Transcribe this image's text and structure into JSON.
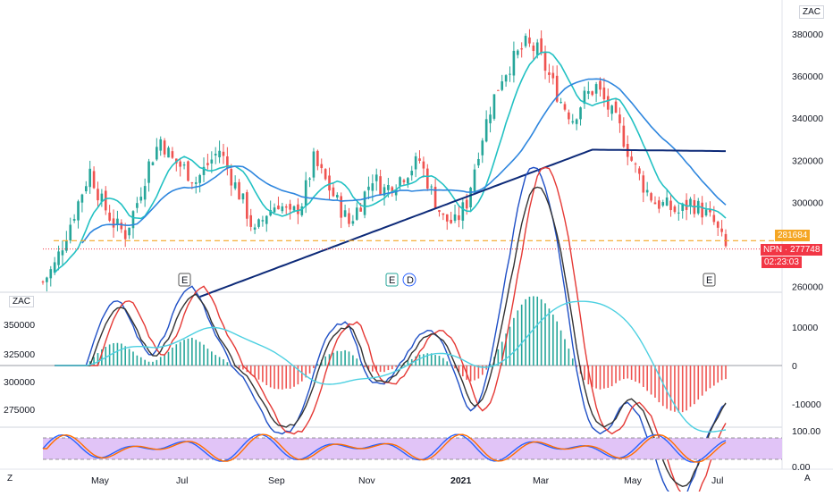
{
  "chart_data": [
    {
      "type": "candlestick",
      "symbol": "NPN",
      "currency_label": "ZAC",
      "price_ticks": [
        380000,
        360000,
        340000,
        320000,
        300000,
        260000
      ],
      "ylim": [
        258000,
        392000
      ],
      "x_labels": [
        "May",
        "Jul",
        "Sep",
        "Nov",
        "2021",
        "Mar",
        "May",
        "Jul"
      ],
      "price_lines": {
        "orange_level": "281684",
        "last_price": "277748",
        "countdown": "02:23:03"
      },
      "event_markers": [
        "E",
        "E",
        "D",
        "E"
      ],
      "close_trend": [
        [
          0,
          262000
        ],
        [
          3,
          270000
        ],
        [
          6,
          285000
        ],
        [
          9,
          300000
        ],
        [
          12,
          315000
        ],
        [
          15,
          300000
        ],
        [
          18,
          290000
        ],
        [
          21,
          285000
        ],
        [
          24,
          300000
        ],
        [
          27,
          318000
        ],
        [
          30,
          330000
        ],
        [
          33,
          320000
        ],
        [
          36,
          316000
        ],
        [
          39,
          310000
        ],
        [
          42,
          318000
        ],
        [
          45,
          325000
        ],
        [
          48,
          312000
        ],
        [
          51,
          300000
        ],
        [
          54,
          285000
        ],
        [
          57,
          295000
        ],
        [
          60,
          300000
        ],
        [
          63,
          293000
        ],
        [
          66,
          300000
        ],
        [
          69,
          320000
        ],
        [
          72,
          310000
        ],
        [
          75,
          300000
        ],
        [
          78,
          290000
        ],
        [
          81,
          300000
        ],
        [
          84,
          312000
        ],
        [
          87,
          306000
        ],
        [
          90,
          310000
        ],
        [
          93,
          315000
        ],
        [
          96,
          320000
        ],
        [
          99,
          305000
        ],
        [
          102,
          292000
        ],
        [
          105,
          290000
        ],
        [
          108,
          300000
        ],
        [
          111,
          325000
        ],
        [
          114,
          345000
        ],
        [
          117,
          360000
        ],
        [
          120,
          368000
        ],
        [
          123,
          375000
        ],
        [
          126,
          372000
        ],
        [
          129,
          360000
        ],
        [
          132,
          348000
        ],
        [
          135,
          340000
        ],
        [
          138,
          350000
        ],
        [
          141,
          355000
        ],
        [
          144,
          345000
        ],
        [
          147,
          335000
        ],
        [
          150,
          320000
        ],
        [
          153,
          308000
        ],
        [
          156,
          300000
        ],
        [
          159,
          298000
        ],
        [
          162,
          295000
        ],
        [
          165,
          300000
        ],
        [
          168,
          296000
        ],
        [
          171,
          290000
        ],
        [
          174,
          278000
        ]
      ],
      "moving_averages": [
        "fast",
        "medium",
        "slow"
      ]
    },
    {
      "type": "line",
      "panel": "oscillator",
      "left_ticks": [
        "350000",
        "325000",
        "300000",
        "275000"
      ],
      "right_ticks": [
        "10000",
        "0",
        "-10000"
      ],
      "overlay_label": "ZAC"
    },
    {
      "type": "line",
      "panel": "stochastic",
      "right_ticks": [
        "100.00",
        "0.00"
      ],
      "band": [
        20,
        80
      ]
    }
  ],
  "bottom_bar": {
    "left": "Z",
    "right": "A"
  }
}
